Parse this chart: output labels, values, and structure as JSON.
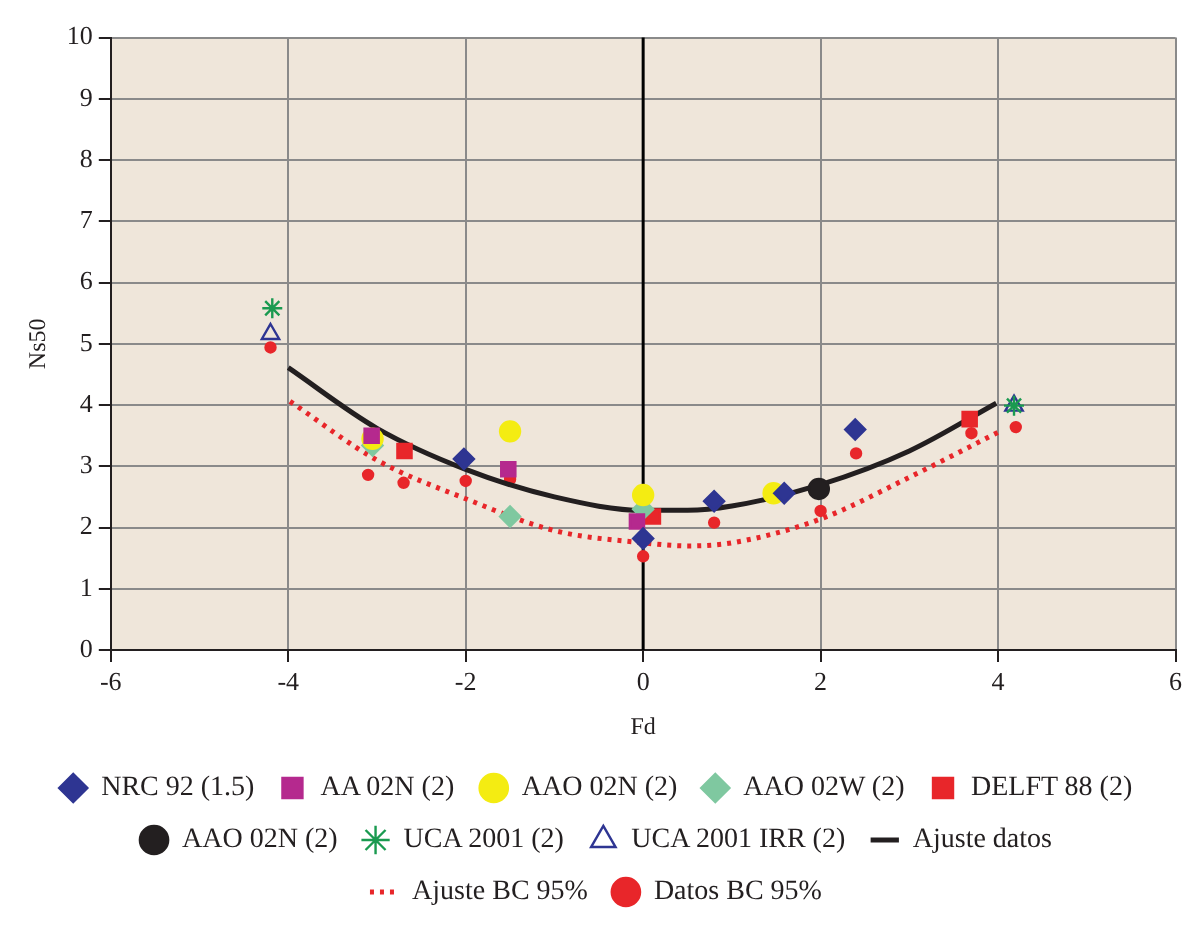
{
  "chart_data": {
    "type": "scatter",
    "xlabel": "Fd",
    "ylabel": "Ns50",
    "xlim": [
      -6,
      6
    ],
    "xticks": [
      -6,
      -4,
      -2,
      0,
      2,
      4,
      6
    ],
    "ylim": [
      0,
      10
    ],
    "yticks": [
      0,
      1,
      2,
      3,
      4,
      5,
      6,
      7,
      8,
      9,
      10
    ],
    "grid": true,
    "legend": "bottom",
    "ref_lines": [
      {
        "axis": "x",
        "value": 0,
        "color": "#000000",
        "line_style": "solid"
      }
    ],
    "series": [
      {
        "name": "NRC 92 (1.5)",
        "color": "#2e3592",
        "marker": "diamond",
        "x": [
          -2.02,
          0,
          0.8,
          1.59,
          2.39
        ],
        "values": [
          3.12,
          1.82,
          2.43,
          2.56,
          3.6
        ]
      },
      {
        "name": "AA 02N (2)",
        "color": "#b5298e",
        "marker": "square",
        "x": [
          -3.06,
          -1.52,
          -0.07
        ],
        "values": [
          3.5,
          2.95,
          2.1
        ]
      },
      {
        "name": "AAO 02N (2)",
        "color": "#f4ec12",
        "marker": "circle",
        "x": [
          -3.05,
          -1.5,
          0,
          1.47
        ],
        "values": [
          3.45,
          3.57,
          2.53,
          2.56
        ]
      },
      {
        "name": "AAO 02W (2)",
        "color": "#7fc8a0",
        "marker": "diamond",
        "x": [
          -3.05,
          -1.5,
          0
        ],
        "values": [
          3.34,
          2.18,
          2.3
        ]
      },
      {
        "name": "DELFT 88 (2)",
        "color": "#e8262a",
        "marker": "square",
        "x": [
          -2.69,
          0.11,
          3.68
        ],
        "values": [
          3.25,
          2.18,
          3.77
        ]
      },
      {
        "name": "AAO 02N (2)",
        "color": "#231f20",
        "marker": "circle",
        "x": [
          1.98
        ],
        "values": [
          2.63
        ]
      },
      {
        "name": "UCA 2001 (2)",
        "color": "#1a9a50",
        "marker": "cross",
        "x": [
          -4.18,
          4.18
        ],
        "values": [
          5.58,
          3.99
        ]
      },
      {
        "name": "UCA 2001 IRR (2)",
        "color": "#2e3592",
        "marker": "triangle",
        "x": [
          -4.2,
          4.18
        ],
        "values": [
          5.16,
          3.99
        ]
      },
      {
        "name": "Ajuste datos",
        "type": "line",
        "color": "#231f20",
        "marker": "none",
        "line_style": "solid",
        "x": [
          -4,
          -3,
          -2,
          -1,
          0,
          0.5,
          1,
          2,
          3,
          3.98
        ],
        "values": [
          4.61,
          3.62,
          2.95,
          2.5,
          2.28,
          2.28,
          2.35,
          2.7,
          3.25,
          4.03
        ]
      },
      {
        "name": "Ajuste BC 95%",
        "type": "line",
        "color": "#e8262a",
        "marker": "none",
        "line_style": "dotted",
        "x": [
          -3.98,
          -3,
          -2,
          -1,
          0,
          0.5,
          1,
          2,
          3,
          4.02
        ],
        "values": [
          4.06,
          3.1,
          2.47,
          1.95,
          1.75,
          1.7,
          1.75,
          2.14,
          2.82,
          3.57
        ]
      },
      {
        "name": "Datos BC 95%",
        "color": "#e8262a",
        "marker": "circle",
        "x": [
          -4.2,
          -3.1,
          -2.7,
          -2,
          -1.5,
          0,
          0.8,
          2,
          2.4,
          3.7,
          4.2
        ],
        "values": [
          4.94,
          2.86,
          2.73,
          2.76,
          2.79,
          1.53,
          2.08,
          2.27,
          3.21,
          3.54,
          3.64
        ]
      }
    ]
  }
}
